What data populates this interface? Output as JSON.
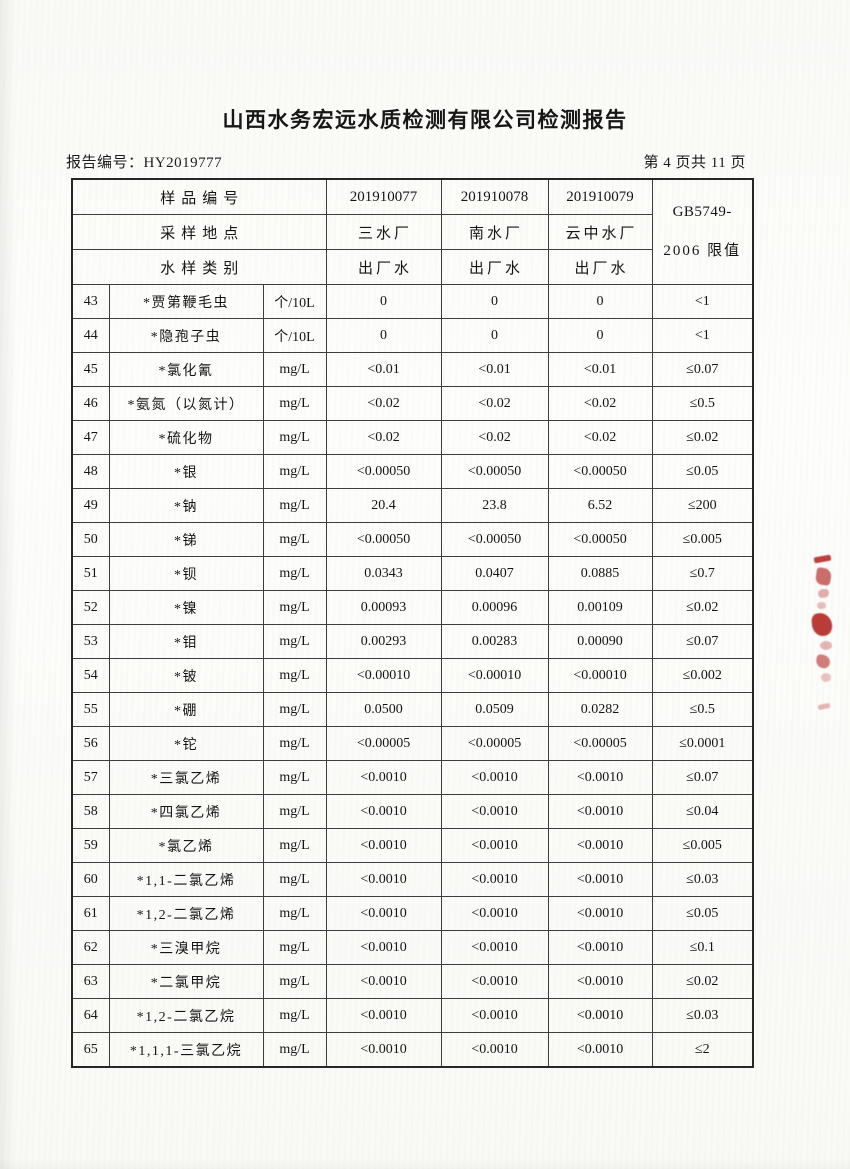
{
  "page": {
    "title": "山西水务宏远水质检测有限公司检测报告",
    "report_no": "报告编号：HY2019777",
    "page_info": "第 4 页共 11 页",
    "seal_color": "#b7322e"
  },
  "table": {
    "header": {
      "rows": [
        {
          "label": "样品编号",
          "values": [
            "201910077",
            "201910078",
            "201910079"
          ]
        },
        {
          "label": "采样地点",
          "values": [
            "三水厂",
            "南水厂",
            "云中水厂"
          ]
        },
        {
          "label": "水样类别",
          "values": [
            "出厂水",
            "出厂水",
            "出厂水"
          ]
        }
      ],
      "limit": {
        "line1": "GB5749-",
        "line2": "2006 限值"
      }
    },
    "rows": [
      {
        "no": "43",
        "name": "*贾第鞭毛虫",
        "unit": "个/10L",
        "v1": "0",
        "v2": "0",
        "v3": "0",
        "limit": "<1"
      },
      {
        "no": "44",
        "name": "*隐孢子虫",
        "unit": "个/10L",
        "v1": "0",
        "v2": "0",
        "v3": "0",
        "limit": "<1"
      },
      {
        "no": "45",
        "name": "*氯化氰",
        "unit": "mg/L",
        "v1": "<0.01",
        "v2": "<0.01",
        "v3": "<0.01",
        "limit": "≤0.07"
      },
      {
        "no": "46",
        "name": "*氨氮（以氮计）",
        "unit": "mg/L",
        "v1": "<0.02",
        "v2": "<0.02",
        "v3": "<0.02",
        "limit": "≤0.5"
      },
      {
        "no": "47",
        "name": "*硫化物",
        "unit": "mg/L",
        "v1": "<0.02",
        "v2": "<0.02",
        "v3": "<0.02",
        "limit": "≤0.02"
      },
      {
        "no": "48",
        "name": "*银",
        "unit": "mg/L",
        "v1": "<0.00050",
        "v2": "<0.00050",
        "v3": "<0.00050",
        "limit": "≤0.05"
      },
      {
        "no": "49",
        "name": "*钠",
        "unit": "mg/L",
        "v1": "20.4",
        "v2": "23.8",
        "v3": "6.52",
        "limit": "≤200"
      },
      {
        "no": "50",
        "name": "*锑",
        "unit": "mg/L",
        "v1": "<0.00050",
        "v2": "<0.00050",
        "v3": "<0.00050",
        "limit": "≤0.005"
      },
      {
        "no": "51",
        "name": "*钡",
        "unit": "mg/L",
        "v1": "0.0343",
        "v2": "0.0407",
        "v3": "0.0885",
        "limit": "≤0.7"
      },
      {
        "no": "52",
        "name": "*镍",
        "unit": "mg/L",
        "v1": "0.00093",
        "v2": "0.00096",
        "v3": "0.00109",
        "limit": "≤0.02"
      },
      {
        "no": "53",
        "name": "*钼",
        "unit": "mg/L",
        "v1": "0.00293",
        "v2": "0.00283",
        "v3": "0.00090",
        "limit": "≤0.07"
      },
      {
        "no": "54",
        "name": "*铍",
        "unit": "mg/L",
        "v1": "<0.00010",
        "v2": "<0.00010",
        "v3": "<0.00010",
        "limit": "≤0.002"
      },
      {
        "no": "55",
        "name": "*硼",
        "unit": "mg/L",
        "v1": "0.0500",
        "v2": "0.0509",
        "v3": "0.0282",
        "limit": "≤0.5"
      },
      {
        "no": "56",
        "name": "*铊",
        "unit": "mg/L",
        "v1": "<0.00005",
        "v2": "<0.00005",
        "v3": "<0.00005",
        "limit": "≤0.0001"
      },
      {
        "no": "57",
        "name": "*三氯乙烯",
        "unit": "mg/L",
        "v1": "<0.0010",
        "v2": "<0.0010",
        "v3": "<0.0010",
        "limit": "≤0.07"
      },
      {
        "no": "58",
        "name": "*四氯乙烯",
        "unit": "mg/L",
        "v1": "<0.0010",
        "v2": "<0.0010",
        "v3": "<0.0010",
        "limit": "≤0.04"
      },
      {
        "no": "59",
        "name": "*氯乙烯",
        "unit": "mg/L",
        "v1": "<0.0010",
        "v2": "<0.0010",
        "v3": "<0.0010",
        "limit": "≤0.005"
      },
      {
        "no": "60",
        "name": "*1,1-二氯乙烯",
        "unit": "mg/L",
        "v1": "<0.0010",
        "v2": "<0.0010",
        "v3": "<0.0010",
        "limit": "≤0.03"
      },
      {
        "no": "61",
        "name": "*1,2-二氯乙烯",
        "unit": "mg/L",
        "v1": "<0.0010",
        "v2": "<0.0010",
        "v3": "<0.0010",
        "limit": "≤0.05"
      },
      {
        "no": "62",
        "name": "*三溴甲烷",
        "unit": "mg/L",
        "v1": "<0.0010",
        "v2": "<0.0010",
        "v3": "<0.0010",
        "limit": "≤0.1"
      },
      {
        "no": "63",
        "name": "*二氯甲烷",
        "unit": "mg/L",
        "v1": "<0.0010",
        "v2": "<0.0010",
        "v3": "<0.0010",
        "limit": "≤0.02"
      },
      {
        "no": "64",
        "name": "*1,2-二氯乙烷",
        "unit": "mg/L",
        "v1": "<0.0010",
        "v2": "<0.0010",
        "v3": "<0.0010",
        "limit": "≤0.03"
      },
      {
        "no": "65",
        "name": "*1,1,1-三氯乙烷",
        "unit": "mg/L",
        "v1": "<0.0010",
        "v2": "<0.0010",
        "v3": "<0.0010",
        "limit": "≤2"
      }
    ]
  }
}
